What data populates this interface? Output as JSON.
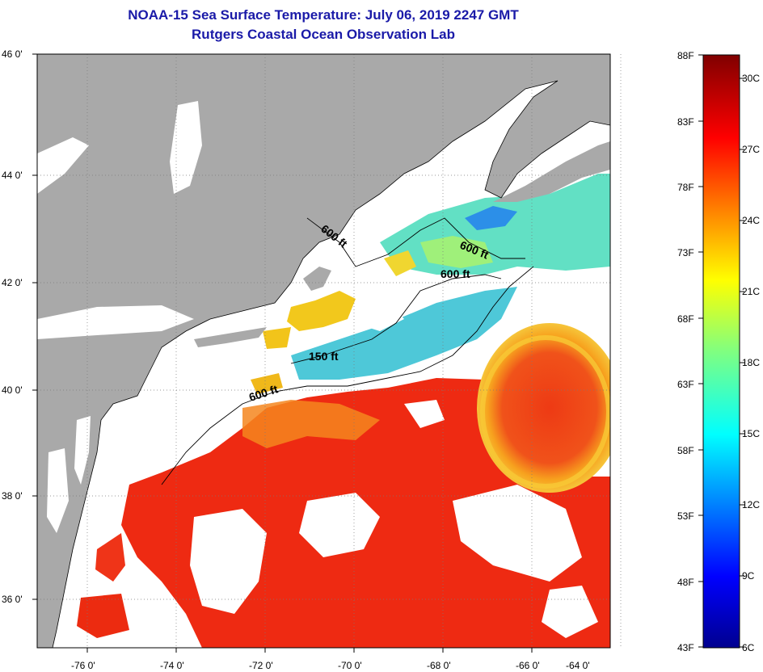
{
  "title": {
    "line1": "NOAA-15 Sea Surface Temperature:  July 06, 2019 2247 GMT",
    "line2": "Rutgers Coastal Ocean Observation Lab"
  },
  "map": {
    "lat_labels": [
      "46 0'",
      "44 0'",
      "42 0'",
      "40 0'",
      "38 0'",
      "36 0'"
    ],
    "lon_labels": [
      "-76 0'",
      "-74 0'",
      "-72 0'",
      "-70 0'",
      "-68 0'",
      "-66 0'",
      "-64 0'"
    ],
    "isobath_labels": [
      "600 ft",
      "600 ft",
      "600 ft",
      "150 ft",
      "600 ft"
    ],
    "colors": {
      "land": "#a9a9a9",
      "cloud": "#ffffff",
      "gulf_stream": "#ee2a12",
      "cold_shelf": "#4ec8d8",
      "warm_shelf": "#f2c81c",
      "title": "#1a1aa8"
    }
  },
  "colorbar": {
    "fahrenheit_labels": [
      "88F",
      "83F",
      "78F",
      "73F",
      "68F",
      "63F",
      "58F",
      "53F",
      "48F",
      "43F"
    ],
    "celsius_labels": [
      "30C",
      "27C",
      "24C",
      "21C",
      "18C",
      "15C",
      "12C",
      "9C",
      "6C"
    ],
    "range_f": [
      43,
      88
    ],
    "range_c": [
      6,
      31
    ],
    "colormap": "jet"
  }
}
